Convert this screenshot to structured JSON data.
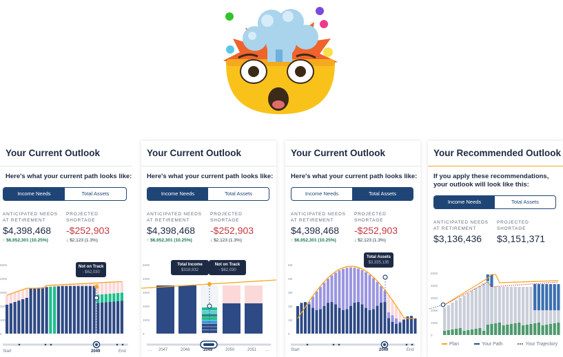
{
  "panels": [
    {
      "title": "Your Current Outlook",
      "subtitle": "Here's what your current path looks like:",
      "tabs": [
        "Income Needs",
        "Total Assets"
      ],
      "active_tab": 0,
      "needs_label_1": "ANTICIPATED NEEDS",
      "needs_label_2": "AT RETIREMENT",
      "needs_value": "$4,398,468",
      "needs_delta": "$6,652,301 (10.25%)",
      "short_label_1": "PROJECTED",
      "short_label_2": "SHORTAGE",
      "short_value": "-$252,903",
      "short_delta": "$2,123 (1.3%)",
      "tooltip": {
        "title": "Not on Track",
        "value": "- $62,030"
      },
      "scrub": {
        "start": "Start",
        "year": "2049",
        "end": "End"
      }
    },
    {
      "title": "Your Current Outlook",
      "subtitle": "Here's what your current path looks like:",
      "tabs": [
        "Income Needs",
        "Total Assets"
      ],
      "active_tab": 0,
      "needs_label_1": "ANTICIPATED NEEDS",
      "needs_label_2": "AT RETIREMENT",
      "needs_value": "$4,398,468",
      "needs_delta": "$6,652,301 (10.25%)",
      "short_label_1": "PROJECTED",
      "short_label_2": "SHORTAGE",
      "short_value": "-$252,903",
      "short_delta": "$2,123 (1.3%)",
      "tooltip_a": {
        "title": "Total Income",
        "value": "$318,932"
      },
      "tooltip_b": {
        "title": "Not on Track",
        "value": "- $62,030"
      },
      "years": [
        "2047",
        "2048",
        "2049",
        "2050",
        "2051"
      ]
    },
    {
      "title": "Your Current Outlook",
      "subtitle": "Here's what your current path looks like:",
      "tabs": [
        "Income Needs",
        "Total Assets"
      ],
      "active_tab": 1,
      "needs_label_1": "ANTICIPATED NEEDS",
      "needs_label_2": "AT RETIREMENT",
      "needs_value": "$4,398,468",
      "needs_delta": "$6,652,301 (10.25%)",
      "short_label_1": "PROJECTED",
      "short_label_2": "SHORTAGE",
      "short_value": "-$252,903",
      "short_delta": "$2,123 (1.3%)",
      "tooltip": {
        "title": "Total Assets",
        "value": "$3,335,135"
      },
      "scrub": {
        "start": "Start",
        "year": "2049",
        "end": "End"
      }
    },
    {
      "title": "Your Recommended Outlook",
      "subtitle_1": "If you apply these recommendations,",
      "subtitle_2": "your outlook will look like this:",
      "tabs": [
        "Income Needs",
        "Total Assets"
      ],
      "active_tab": 0,
      "needs_label_1": "ANTICIPATED NEEDS",
      "needs_label_2": "AT RETIREMENT",
      "needs_value": "$3,136,436",
      "short_label_1": "PROJECTED",
      "short_label_2": "SHORTAGE",
      "short_value": "$3,151,371",
      "legend": [
        "Plan",
        "Your Path",
        "Your Trajectory"
      ]
    }
  ],
  "axis_ticks_1": [
    "500K",
    "400K",
    "300K",
    "200K",
    "100K",
    "0"
  ],
  "axis_ticks_2": [
    "5M",
    "4M",
    "3M",
    "2M",
    "1M",
    "0"
  ],
  "colors": {
    "navy": "#1f4576",
    "dark_bar": "#2e4a85",
    "pink": "#fbd9d9",
    "orange": "#f5a623",
    "teal": "#1dbf8e",
    "lavender": "#9b96e0",
    "grey_bar": "#c9ced8",
    "green_bar": "#4e9a6e",
    "blue_bar": "#3a6fb0",
    "red": "#c9363e"
  }
}
